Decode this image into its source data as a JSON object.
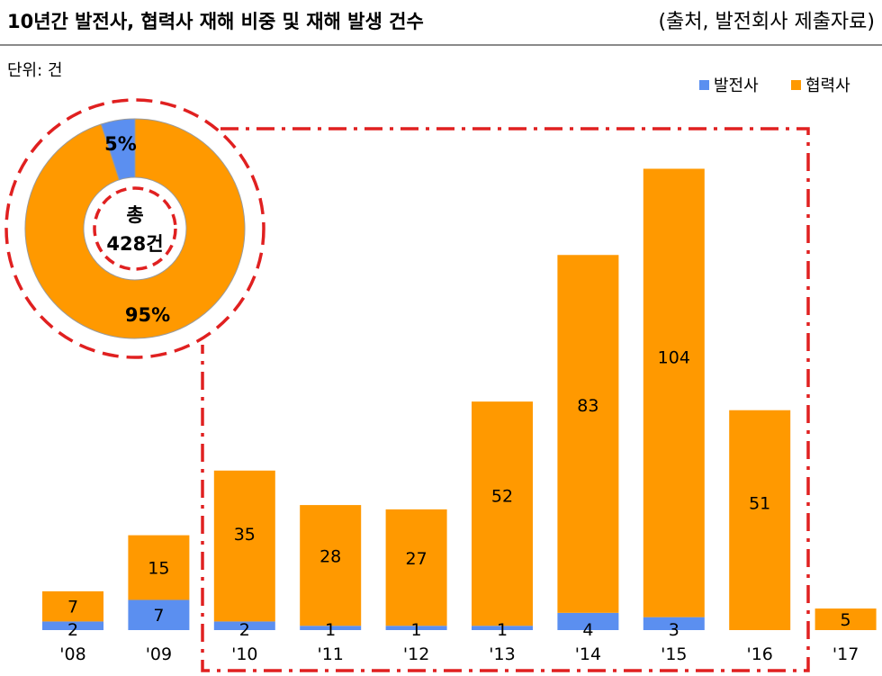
{
  "header": {
    "title": "10년간 발전사, 협력사 재해 비중 및 재해 발생 건수",
    "source": "(출처, 발전회사 제출자료)"
  },
  "unit_label": "단위: 건",
  "colors": {
    "power_company": "#5B8FF0",
    "partner_company": "#FF9900",
    "highlight": "#E02020",
    "divider": "#8a8a8a"
  },
  "donut": {
    "center_line1": "총",
    "center_line2": "428건",
    "share_labels": [
      "5%",
      "95%"
    ],
    "shares": [
      5,
      95
    ]
  },
  "chart_data": {
    "type": "bar",
    "stacked": true,
    "categories": [
      "'08",
      "'09",
      "'10",
      "'11",
      "'12",
      "'13",
      "'14",
      "'15",
      "'16",
      "'17"
    ],
    "series": [
      {
        "name": "발전사",
        "values": [
          2,
          7,
          2,
          1,
          1,
          1,
          4,
          3,
          0,
          0
        ]
      },
      {
        "name": "협력사",
        "values": [
          7,
          15,
          35,
          28,
          27,
          52,
          83,
          104,
          51,
          5
        ]
      }
    ],
    "data_labels": [
      [
        "2",
        "7",
        "2",
        "1",
        "1",
        "1",
        "4",
        "3",
        "",
        ""
      ],
      [
        "7",
        "15",
        "35",
        "28",
        "27",
        "52",
        "83",
        "104",
        "51",
        "5"
      ]
    ],
    "legend_position": "top-right",
    "grid": false
  }
}
